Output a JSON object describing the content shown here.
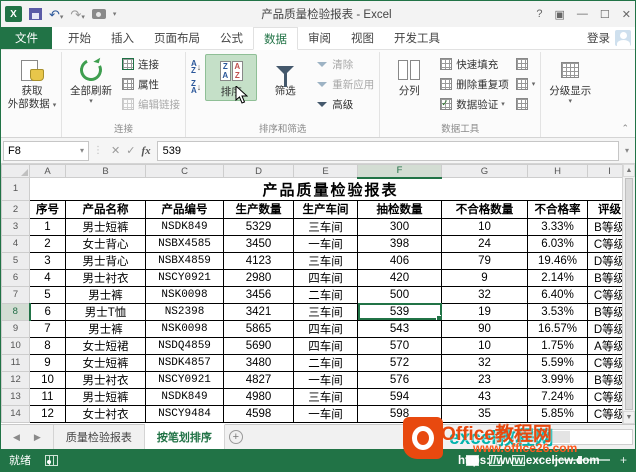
{
  "window": {
    "title": "产品质量检验报表 - Excel"
  },
  "titlebar": {
    "help": "?",
    "ribbon_options": "▣",
    "minimize": "—",
    "maximize": "☐",
    "close": "✕"
  },
  "menu": {
    "file": "文件",
    "tabs": [
      "开始",
      "插入",
      "页面布局",
      "公式",
      "数据",
      "审阅",
      "视图",
      "开发工具"
    ],
    "active_tab": "数据",
    "sign_in": "登录"
  },
  "ribbon": {
    "get_external_1": "获取",
    "get_external_2": "外部数据",
    "refresh_all": "全部刷新",
    "connections": "连接",
    "properties": "属性",
    "edit_links": "编辑链接",
    "group_connections": "连接",
    "sort": "排序",
    "filter": "筛选",
    "clear": "清除",
    "reapply": "重新应用",
    "advanced": "高级",
    "group_sort_filter": "排序和筛选",
    "text_to_columns": "分列",
    "flash_fill": "快速填充",
    "remove_duplicates": "删除重复项",
    "data_validation": "数据验证",
    "group_data_tools": "数据工具",
    "outline": "分级显示"
  },
  "formula_bar": {
    "name_box": "F8",
    "value": "539"
  },
  "sheet": {
    "column_letters": [
      "A",
      "B",
      "C",
      "D",
      "E",
      "F",
      "G",
      "H",
      "I"
    ],
    "selected_cell": "F8",
    "selected_column": "F",
    "selected_row": 8,
    "title": "产品质量检验报表",
    "headers": [
      "序号",
      "产品名称",
      "产品编号",
      "生产数量",
      "生产车间",
      "抽检数量",
      "不合格数量",
      "不合格率",
      "评级"
    ],
    "rows": [
      [
        "1",
        "男士短裤",
        "NSDK849",
        "5329",
        "三车间",
        "300",
        "10",
        "3.33%",
        "B等级"
      ],
      [
        "2",
        "女士背心",
        "NSBX4585",
        "3450",
        "一车间",
        "398",
        "24",
        "6.03%",
        "C等级"
      ],
      [
        "3",
        "男士背心",
        "NSBX4859",
        "4123",
        "三车间",
        "406",
        "79",
        "19.46%",
        "D等级"
      ],
      [
        "4",
        "男士衬衣",
        "NSCY0921",
        "2980",
        "四车间",
        "420",
        "9",
        "2.14%",
        "B等级"
      ],
      [
        "5",
        "男士裤",
        "NSK0098",
        "3456",
        "二车间",
        "500",
        "32",
        "6.40%",
        "C等级"
      ],
      [
        "6",
        "男士T恤",
        "NS2398",
        "3421",
        "三车间",
        "539",
        "19",
        "3.53%",
        "B等级"
      ],
      [
        "7",
        "男士裤",
        "NSK0098",
        "5865",
        "四车间",
        "543",
        "90",
        "16.57%",
        "D等级"
      ],
      [
        "8",
        "女士短裙",
        "NSDQ4859",
        "5690",
        "四车间",
        "570",
        "10",
        "1.75%",
        "A等级"
      ],
      [
        "9",
        "女士短裤",
        "NSDK4857",
        "3480",
        "二车间",
        "572",
        "32",
        "5.59%",
        "C等级"
      ],
      [
        "10",
        "男士衬衣",
        "NSCY0921",
        "4827",
        "一车间",
        "576",
        "23",
        "3.99%",
        "B等级"
      ],
      [
        "11",
        "男士短裤",
        "NSDK849",
        "4980",
        "三车间",
        "594",
        "43",
        "7.24%",
        "C等级"
      ],
      [
        "12",
        "女士衬衣",
        "NSCY9484",
        "4598",
        "一车间",
        "598",
        "35",
        "5.85%",
        "C等级"
      ]
    ]
  },
  "sheet_tabs": {
    "tabs": [
      "质量检验报表",
      "按笔划排序"
    ],
    "active": "按笔划排序"
  },
  "status_bar": {
    "ready": "就绪"
  },
  "watermark": {
    "brand_orange": "Office教程网",
    "brand_teal": "excel教程网",
    "url_orange": "www.office26.com",
    "url_white": "https://www.exceljcw.com"
  }
}
